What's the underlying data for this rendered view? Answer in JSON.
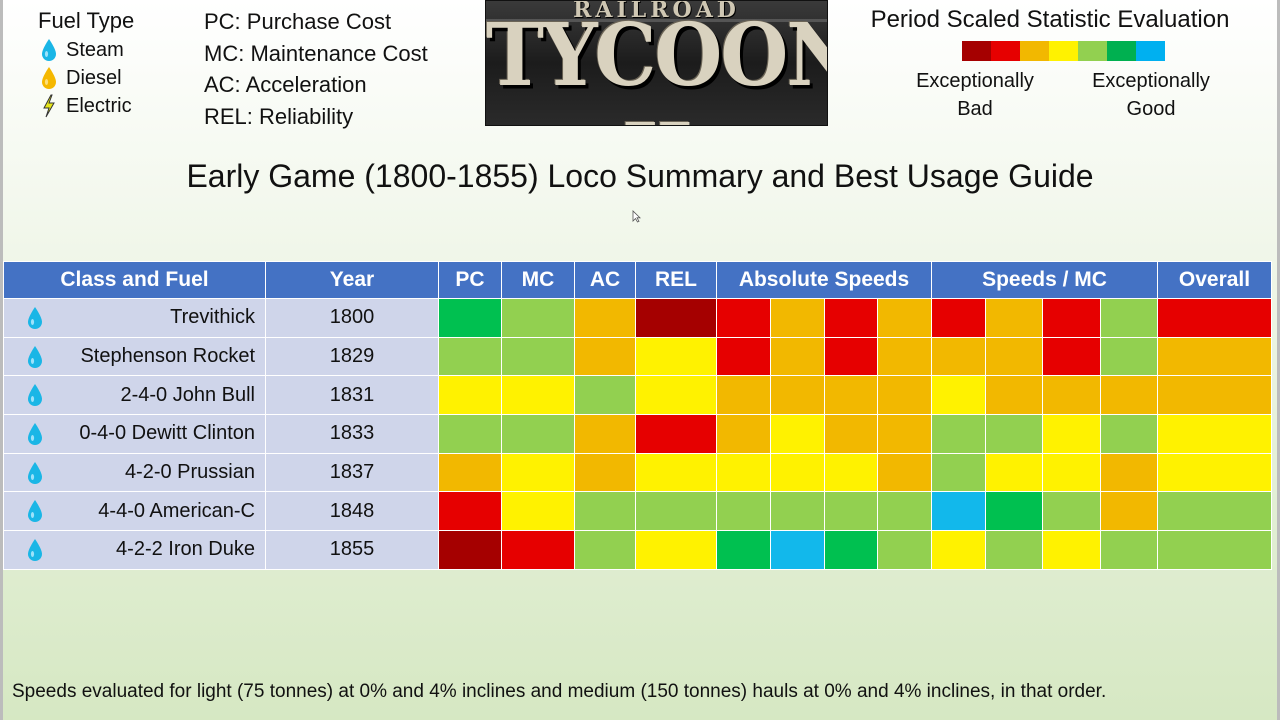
{
  "fuel_legend": {
    "title": "Fuel Type",
    "items": [
      {
        "label": "Steam",
        "icon": "water-drop-icon",
        "color": "#1ab6e6"
      },
      {
        "label": "Diesel",
        "icon": "oil-drop-icon",
        "color": "#f5b800"
      },
      {
        "label": "Electric",
        "icon": "lightning-icon",
        "color": "#e0e020"
      }
    ]
  },
  "abbreviations": [
    "PC: Purchase Cost",
    "MC: Maintenance Cost",
    "AC: Acceleration",
    "REL: Reliability"
  ],
  "logo": {
    "top_word": "RAILROAD",
    "main_word": "TYCOON II"
  },
  "evaluation": {
    "title": "Period Scaled Statistic Evaluation",
    "scale_colors": [
      "#a50000",
      "#e60000",
      "#f2b800",
      "#fff200",
      "#92d050",
      "#00b050",
      "#00b0f0"
    ],
    "bad_label_line1": "Exceptionally",
    "bad_label_line2": "Bad",
    "good_label_line1": "Exceptionally",
    "good_label_line2": "Good"
  },
  "title": "Early Game (1800-1855) Loco Summary and Best Usage Guide",
  "palette": {
    "DR": "#a50000",
    "R": "#e60000",
    "O": "#f2b800",
    "Y": "#fff200",
    "LG": "#92d050",
    "G": "#00c050",
    "B": "#12b8eb"
  },
  "table": {
    "headers": {
      "class_fuel": "Class and Fuel",
      "year": "Year",
      "pc": "PC",
      "mc": "MC",
      "ac": "AC",
      "rel": "REL",
      "abs_speeds": "Absolute Speeds",
      "speeds_mc": "Speeds / MC",
      "overall": "Overall"
    },
    "rows": [
      {
        "name": "Trevithick",
        "fuel": "steam",
        "year": "1800",
        "cells": [
          "G",
          "LG",
          "O",
          "DR",
          "R",
          "O",
          "R",
          "O",
          "R",
          "O",
          "R",
          "LG",
          "R"
        ]
      },
      {
        "name": "Stephenson Rocket",
        "fuel": "steam",
        "year": "1829",
        "cells": [
          "LG",
          "LG",
          "O",
          "Y",
          "R",
          "O",
          "R",
          "O",
          "O",
          "O",
          "R",
          "LG",
          "O"
        ]
      },
      {
        "name": "2-4-0 John Bull",
        "fuel": "steam",
        "year": "1831",
        "cells": [
          "Y",
          "Y",
          "LG",
          "Y",
          "O",
          "O",
          "O",
          "O",
          "Y",
          "O",
          "O",
          "O",
          "O"
        ]
      },
      {
        "name": "0-4-0 Dewitt Clinton",
        "fuel": "steam",
        "year": "1833",
        "cells": [
          "LG",
          "LG",
          "O",
          "R",
          "O",
          "Y",
          "O",
          "O",
          "LG",
          "LG",
          "Y",
          "LG",
          "Y"
        ]
      },
      {
        "name": "4-2-0 Prussian",
        "fuel": "steam",
        "year": "1837",
        "cells": [
          "O",
          "Y",
          "O",
          "Y",
          "Y",
          "Y",
          "Y",
          "O",
          "LG",
          "Y",
          "Y",
          "O",
          "Y"
        ]
      },
      {
        "name": "4-4-0 American-C",
        "fuel": "steam",
        "year": "1848",
        "cells": [
          "R",
          "Y",
          "LG",
          "LG",
          "LG",
          "LG",
          "LG",
          "LG",
          "B",
          "G",
          "LG",
          "O",
          "LG"
        ]
      },
      {
        "name": "4-2-2 Iron Duke",
        "fuel": "steam",
        "year": "1855",
        "cells": [
          "DR",
          "R",
          "LG",
          "Y",
          "G",
          "B",
          "G",
          "LG",
          "Y",
          "LG",
          "Y",
          "LG",
          "LG"
        ]
      }
    ]
  },
  "footnote": "Speeds evaluated for light (75 tonnes) at 0% and 4% inclines and medium (150 tonnes) hauls at 0% and 4% inclines, in that order."
}
